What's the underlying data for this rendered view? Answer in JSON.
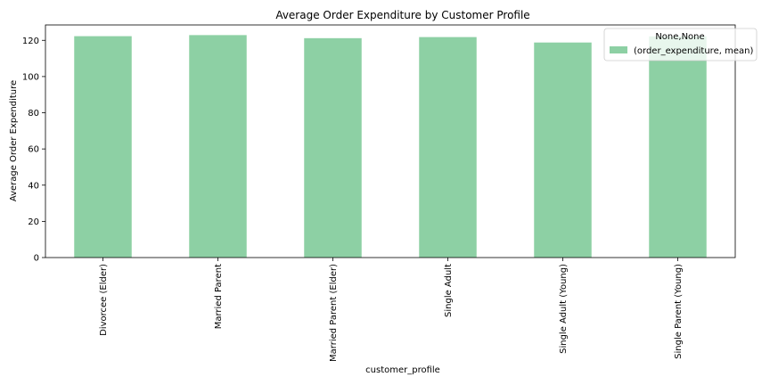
{
  "chart_data": {
    "type": "bar",
    "title": "Average Order Expenditure by Customer Profile",
    "xlabel": "customer_profile",
    "ylabel": "Average Order Expenditure",
    "categories": [
      "Divorcee (Elder)",
      "Married Parent",
      "Married Parent (Elder)",
      "Single Adult",
      "Single Adult (Young)",
      "Single Parent (Young)"
    ],
    "series": [
      {
        "name": "(order_expenditure, mean)",
        "values": [
          122.3,
          122.9,
          121.2,
          121.8,
          118.8,
          122.2
        ],
        "color": "#8dd0a4"
      }
    ],
    "ylim": [
      0,
      128.5
    ],
    "yticks": [
      0,
      20,
      40,
      60,
      80,
      100,
      120
    ],
    "legend": {
      "title": "None,None",
      "placement": "top-right"
    },
    "grid": false
  }
}
